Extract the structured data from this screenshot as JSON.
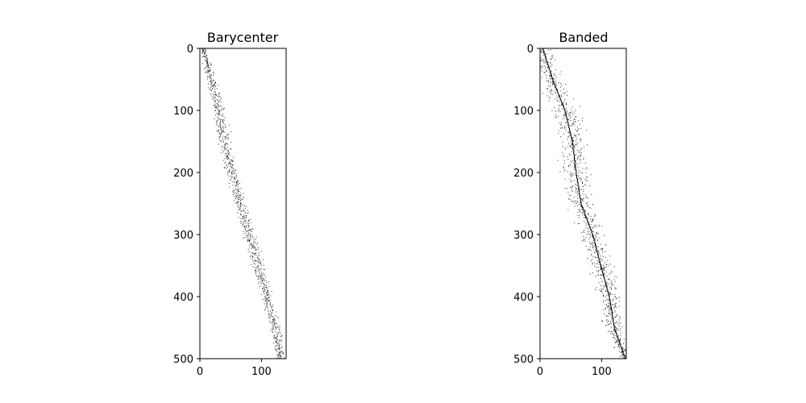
{
  "chart_data": [
    {
      "type": "heatmap",
      "subtype": "sparsity-pattern (spy plot)",
      "title": "Barycenter",
      "xlabel": "",
      "ylabel": "",
      "xlim": [
        0,
        140
      ],
      "ylim": [
        500,
        0
      ],
      "xticks": [
        0,
        100
      ],
      "yticks": [
        0,
        100,
        200,
        300,
        400,
        500
      ],
      "grid": false,
      "marker_color": "#000000",
      "pattern": {
        "description": "rows",
        "rows": 500,
        "cols": 140,
        "band": [
          {
            "row": 0,
            "center": 5,
            "halfwidth": 6
          },
          {
            "row": 50,
            "center": 18,
            "halfwidth": 12
          },
          {
            "row": 100,
            "center": 30,
            "halfwidth": 14
          },
          {
            "row": 150,
            "center": 40,
            "halfwidth": 14
          },
          {
            "row": 200,
            "center": 52,
            "halfwidth": 14
          },
          {
            "row": 250,
            "center": 65,
            "halfwidth": 14
          },
          {
            "row": 300,
            "center": 80,
            "halfwidth": 15
          },
          {
            "row": 350,
            "center": 95,
            "halfwidth": 14
          },
          {
            "row": 400,
            "center": 108,
            "halfwidth": 12
          },
          {
            "row": 450,
            "center": 122,
            "halfwidth": 12
          },
          {
            "row": 500,
            "center": 130,
            "halfwidth": 10
          }
        ],
        "diagonal_line": false
      }
    },
    {
      "type": "heatmap",
      "subtype": "sparsity-pattern (spy plot)",
      "title": "Banded",
      "xlabel": "",
      "ylabel": "",
      "xlim": [
        0,
        140
      ],
      "ylim": [
        500,
        0
      ],
      "xticks": [
        0,
        100
      ],
      "yticks": [
        0,
        100,
        200,
        300,
        400,
        500
      ],
      "grid": false,
      "marker_color": "#000000",
      "pattern": {
        "description": "rows",
        "rows": 500,
        "cols": 140,
        "band": [
          {
            "row": 0,
            "center": 4,
            "halfwidth": 20
          },
          {
            "row": 50,
            "center": 20,
            "halfwidth": 28
          },
          {
            "row": 100,
            "center": 40,
            "halfwidth": 32
          },
          {
            "row": 150,
            "center": 52,
            "halfwidth": 32
          },
          {
            "row": 200,
            "center": 58,
            "halfwidth": 30
          },
          {
            "row": 250,
            "center": 66,
            "halfwidth": 30
          },
          {
            "row": 300,
            "center": 85,
            "halfwidth": 28
          },
          {
            "row": 350,
            "center": 98,
            "halfwidth": 26
          },
          {
            "row": 400,
            "center": 112,
            "halfwidth": 24
          },
          {
            "row": 450,
            "center": 120,
            "halfwidth": 20
          },
          {
            "row": 500,
            "center": 138,
            "halfwidth": 16
          }
        ],
        "diagonal_line": true
      }
    }
  ]
}
